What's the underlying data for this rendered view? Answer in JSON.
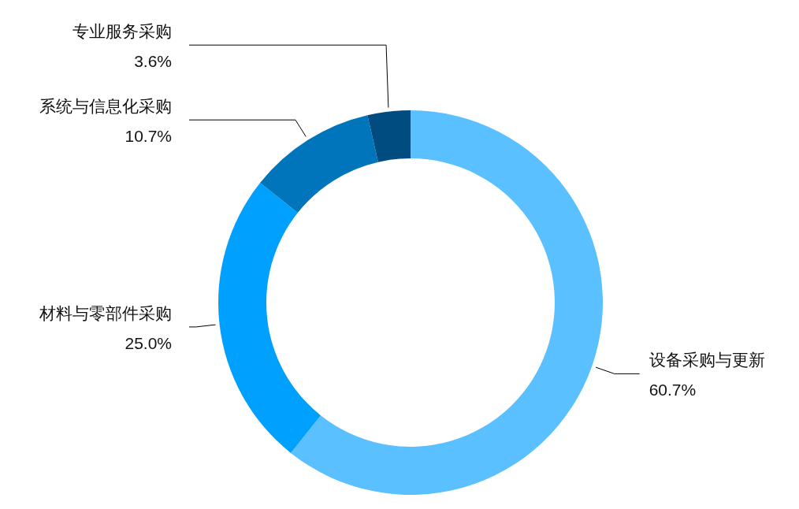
{
  "chart_data": {
    "type": "donut",
    "categories": [
      "设备采购与更新",
      "材料与零部件采购",
      "系统与信息化采购",
      "专业服务采购"
    ],
    "values": [
      60.7,
      25.0,
      10.7,
      3.6
    ],
    "colors": [
      "#5ac0ff",
      "#00a0ff",
      "#0075bb",
      "#004c80"
    ],
    "value_labels": [
      "60.7%",
      "25.0%",
      "10.7%",
      "3.6%"
    ]
  }
}
